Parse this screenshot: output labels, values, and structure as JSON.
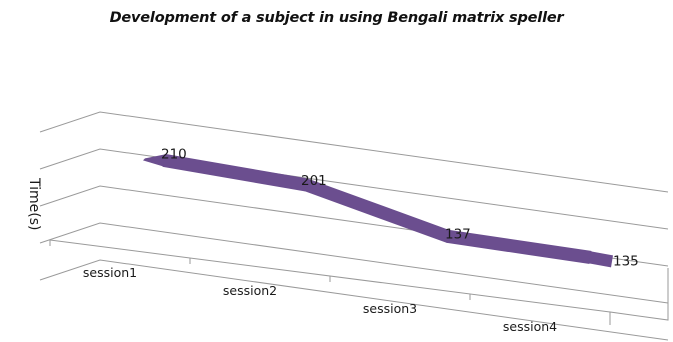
{
  "chart_data": {
    "type": "line",
    "title": "Development of a subject in using Bengali matrix speller",
    "xlabel": "",
    "ylabel": "Time(s)",
    "categories": [
      "session1",
      "session2",
      "session3",
      "session4"
    ],
    "series": [
      {
        "values": [
          210,
          201,
          137,
          135
        ]
      }
    ],
    "ylim": [
      0,
      300
    ],
    "grid": true,
    "style": "3d-ribbon",
    "line_color": "#6b4e8f"
  }
}
